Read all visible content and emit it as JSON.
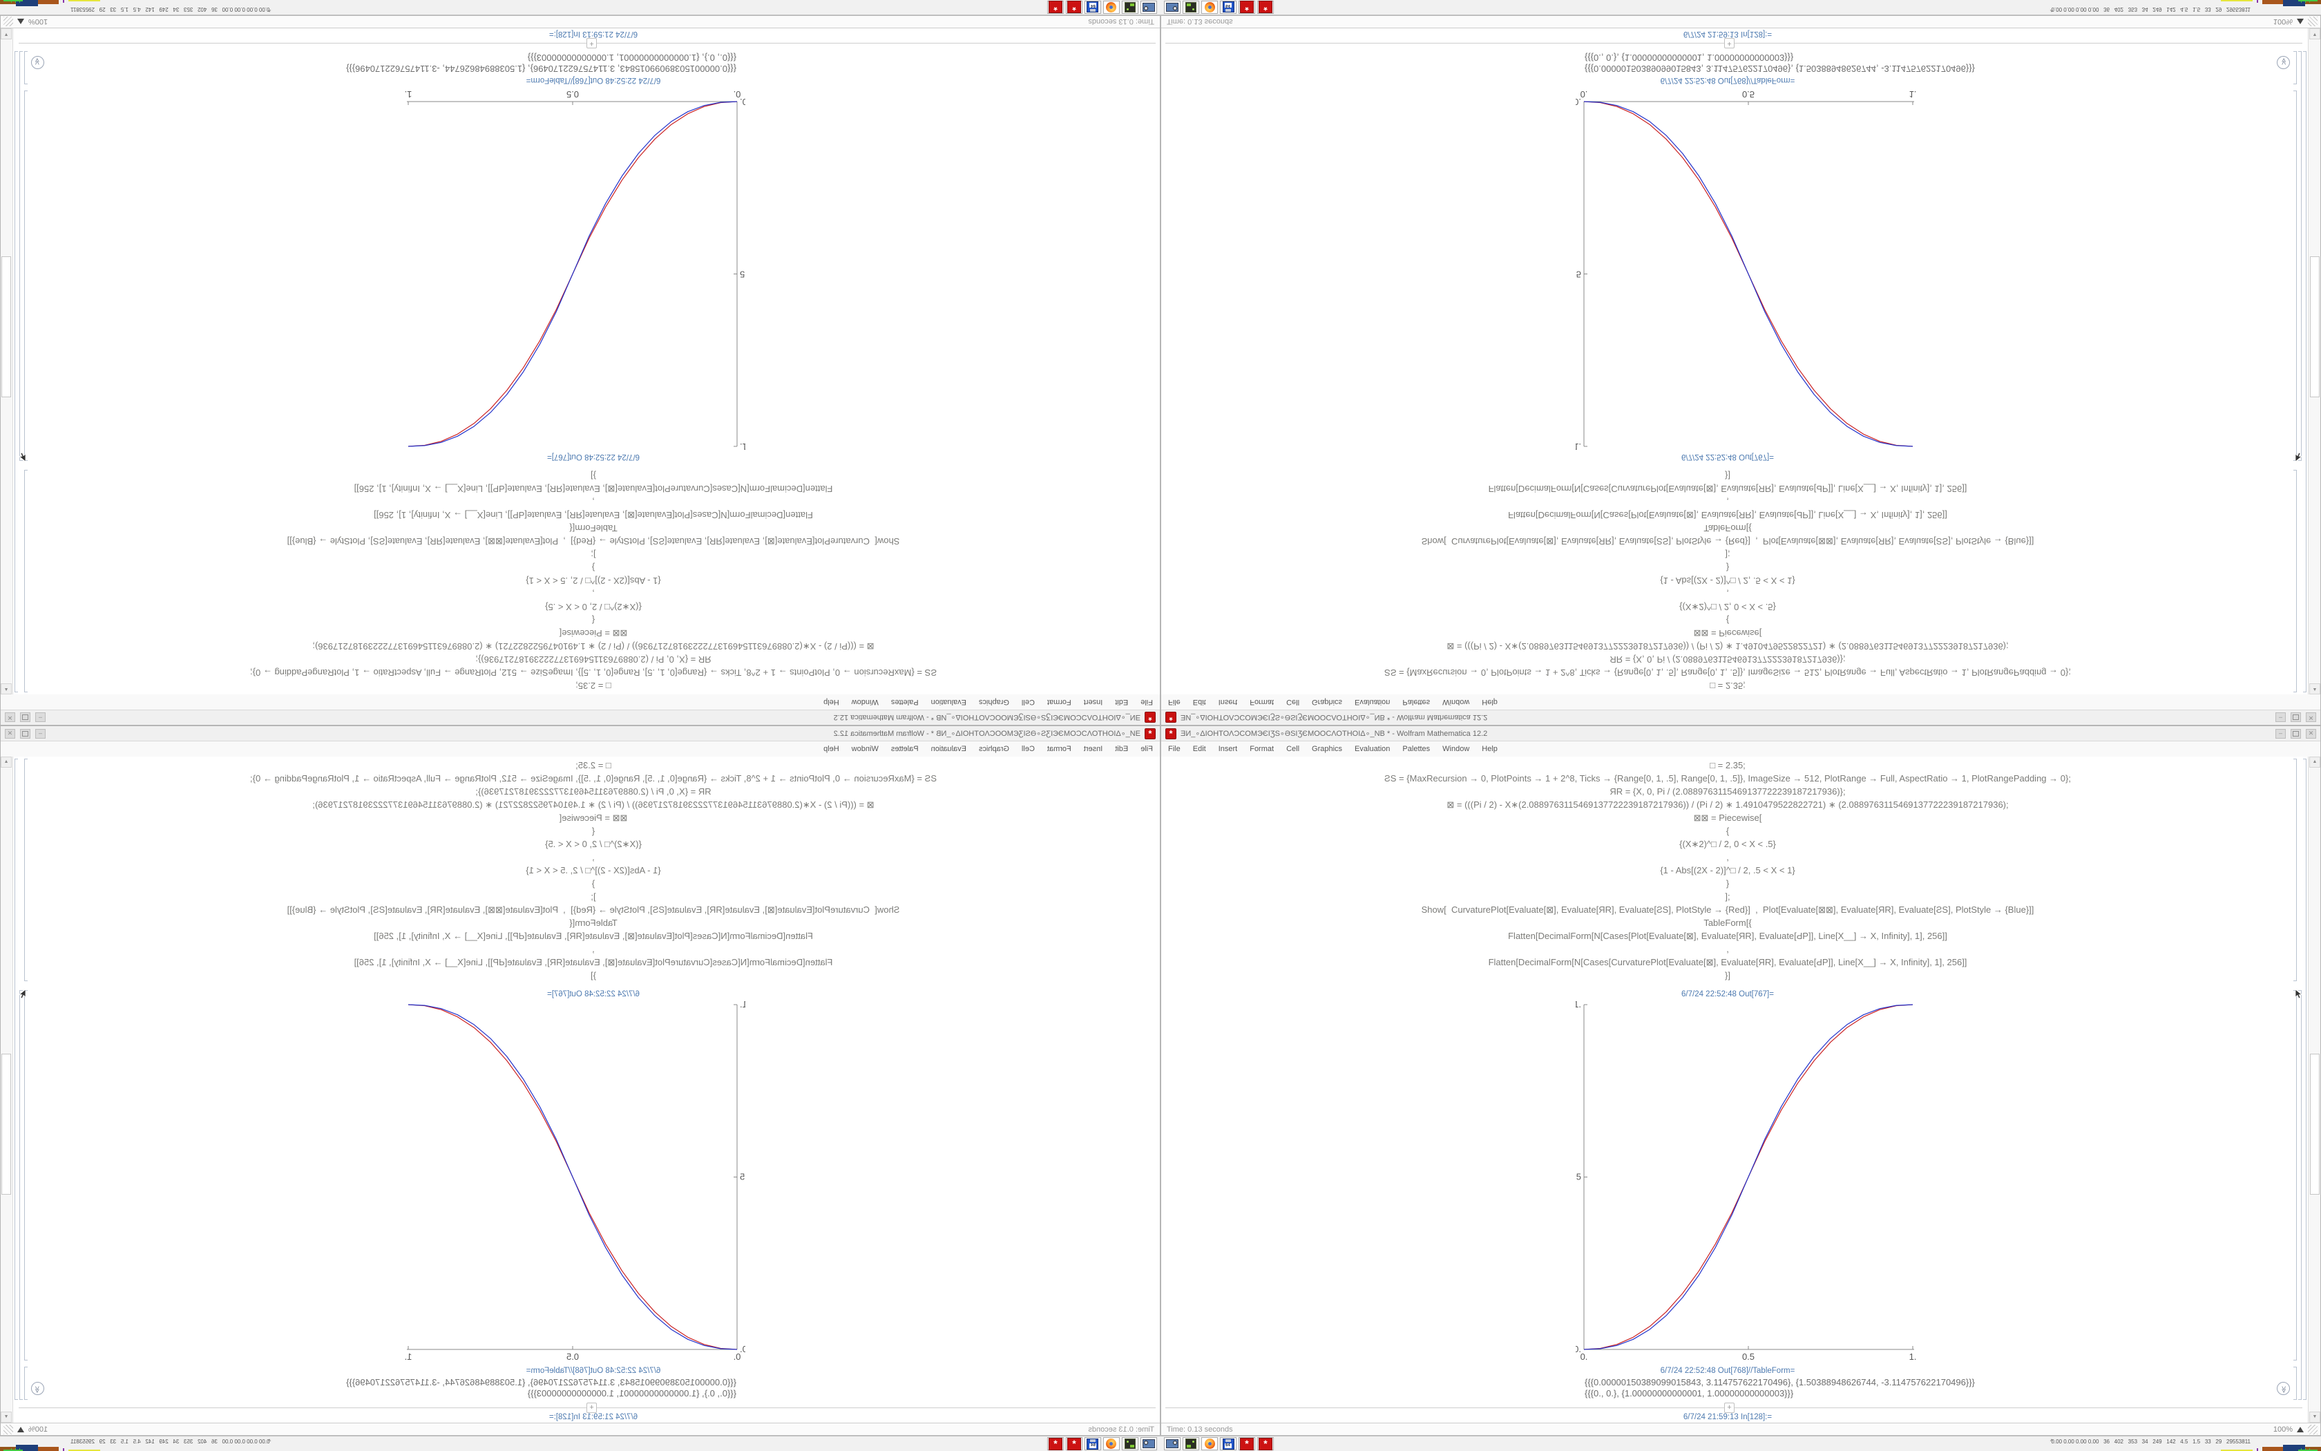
{
  "window": {
    "title": "ƎИ_∘ΔΙΟΗΤΟΛϽCOMЭЄIƷS∘ƏSIƷЄMOOCΛΟΤΗΟΙΔ∘_NB * - Wolfram Mathematica 12.2",
    "app_icon_glyph": "*",
    "buttons": {
      "minimize": "–",
      "close": "✕"
    }
  },
  "menu": {
    "items": [
      "File",
      "Edit",
      "Insert",
      "Format",
      "Cell",
      "Graphics",
      "Evaluation",
      "Palettes",
      "Window",
      "Help"
    ]
  },
  "notebook": {
    "code_lines": [
      "□ = 2.35;",
      "ƧS = {MaxRecursion → 0, PlotPoints → 1 + 2^8, Ticks → {Range[0, 1, .5], Range[0, 1, .5]}, ImageSize → 512, PlotRange → Full, AspectRatio → 1, PlotRangePadding → 0};",
      "ЯR = {X, 0, Pi / (2.0889763115469137722239187217936)};",
      "⊠ = (((Pi / 2) - X∗(2.0889763115469137722239187217936)) / (Pi / 2) ∗ 1.4910479522822721) ∗ (2.0889763115469137722239187217936);",
      "⊠⊠ = Piecewise[",
      "{",
      "{(X∗2)^□ / 2, 0 < X < .5}",
      ",",
      "{1 - Abs[(2X - 2)]^□ / 2, .5 < X < 1}",
      "}",
      "];",
      "Show[  CurvaturePlot[Evaluate[⊠], Evaluate[ЯR], Evaluate[ƧS], PlotStyle → {Red}]  ,  Plot[Evaluate[⊠⊠], Evaluate[ЯR], Evaluate[ƧS], PlotStyle → {Blue}]]",
      "TableForm[{",
      "Flatten[DecimalForm[N[Cases[Plot[Evaluate[⊠], Evaluate[ЯR], Evaluate[ԀP]], Line[X__] → X, Infinity], 1], 256]]",
      ",",
      "Flatten[DecimalForm[N[Cases[CurvaturePlot[Evaluate[⊠], Evaluate[ЯR], Evaluate[ԀP]], Line[X__] → X, Infinity], 1], 256]]",
      "}]"
    ],
    "out767_label": "6/7/24 22:52:48 Out[767]=",
    "out768_label": "6/7/24 22:52:48 Out[768]//TableForm=",
    "in_label": "6/7/24 21:59:13 In[128]:=",
    "insert_plus": "+",
    "table_rows": [
      "{{{0.00000150389099015843, 3.114757622170496}, {1.50388948626744, -3.114757622170496}}}",
      "{{{0., 0.}, {1.00000000000001, 1.00000000000003}}}"
    ],
    "jump_end_glyph": "≫"
  },
  "chart_data": {
    "type": "line",
    "title": "",
    "xlabel": "",
    "ylabel": "",
    "xlim": [
      0,
      1
    ],
    "ylim": [
      0,
      1
    ],
    "grid": false,
    "x_ticks": [
      {
        "label": "0.",
        "v": 0
      },
      {
        "label": "0.5",
        "v": 0.5
      },
      {
        "label": "1.",
        "v": 1
      }
    ],
    "y_ticks": [
      {
        "label": "0.",
        "v": 0
      },
      {
        "label": "0.5",
        "v": 0.5
      },
      {
        "label": "1.",
        "v": 1
      }
    ],
    "x": [
      0,
      0.05,
      0.1,
      0.15,
      0.2,
      0.25,
      0.3,
      0.35,
      0.4,
      0.45,
      0.5,
      0.55,
      0.6,
      0.65,
      0.7,
      0.75,
      0.8,
      0.85,
      0.9,
      0.95,
      1
    ],
    "series": [
      {
        "name": "CurvaturePlot",
        "color": "#cc2222",
        "values": [
          0,
          0.0031,
          0.0145,
          0.0354,
          0.0666,
          0.1088,
          0.1626,
          0.2281,
          0.306,
          0.3965,
          0.5,
          0.6035,
          0.694,
          0.7719,
          0.8374,
          0.8912,
          0.9334,
          0.9646,
          0.9855,
          0.9969,
          1
        ]
      },
      {
        "name": "Plot",
        "color": "#2233cc",
        "values": [
          0,
          0.0022,
          0.0114,
          0.0295,
          0.058,
          0.098,
          0.1505,
          0.2163,
          0.296,
          0.3903,
          0.5,
          0.6097,
          0.704,
          0.7837,
          0.8495,
          0.902,
          0.942,
          0.9705,
          0.9886,
          0.9978,
          1
        ]
      }
    ],
    "axis_color": "#888888",
    "tick_label_color": "#555555"
  },
  "statusbar": {
    "time_text": "Time: 0.13 seconds",
    "zoom_text": "100%"
  },
  "taskbar": {
    "icons": [
      "screenshot-tool",
      "package-manager",
      "firefox",
      "floppy-64",
      "mathematica-a",
      "mathematica-b"
    ],
    "floppy_label": "64",
    "mathematica_glyph": "*",
    "tray_caret": "^",
    "tray_text": "0.00 0.00 0.00 0.00   36   402   353   34   249   142   4.5   1.5   33   29   29553811"
  }
}
